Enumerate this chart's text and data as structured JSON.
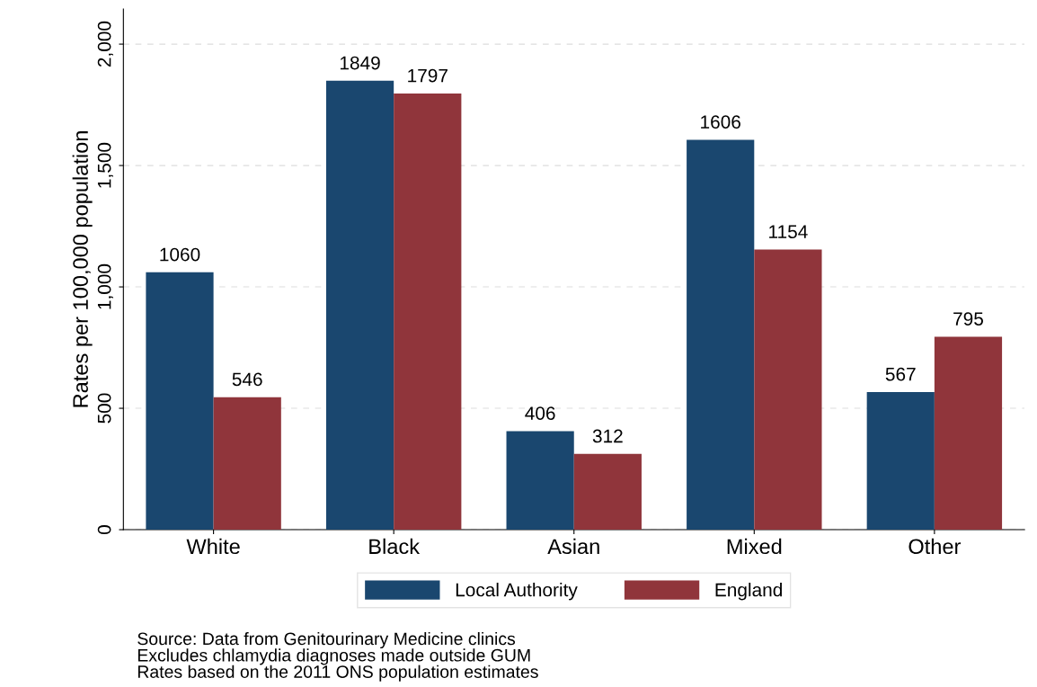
{
  "chart_data": {
    "type": "bar",
    "ylabel": "Rates per 100,000 population",
    "categories": [
      "White",
      "Black",
      "Asian",
      "Mixed",
      "Other"
    ],
    "series": [
      {
        "name": "Local Authority",
        "color": "#1a476f",
        "values": [
          1060,
          1849,
          406,
          1606,
          567
        ]
      },
      {
        "name": "England",
        "color": "#90353b",
        "values": [
          546,
          1797,
          312,
          1154,
          795
        ]
      }
    ],
    "ylim": [
      0,
      2145
    ],
    "yticks": [
      0,
      {
        "value": 500,
        "label": "500"
      },
      {
        "value": 1000,
        "label": "1,000"
      },
      {
        "value": 1500,
        "label": "1,500"
      },
      {
        "value": 2000,
        "label": "2,000"
      }
    ],
    "grid": "y",
    "legend": "bottom",
    "data_labels": true,
    "annotations": [
      "Source: Data from Genitourinary Medicine clinics",
      "Excludes chlamydia diagnoses made outside GUM",
      "Rates based on the 2011 ONS population estimates"
    ]
  }
}
